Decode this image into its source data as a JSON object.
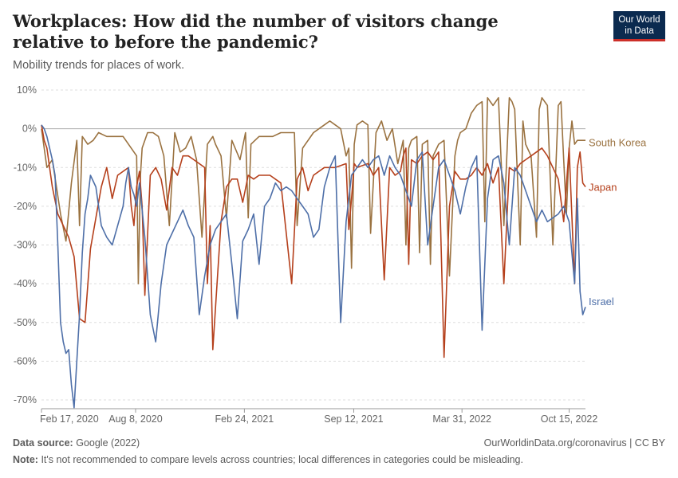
{
  "header": {
    "title": "Workplaces: How did the number of visitors change relative to before the pandemic?",
    "subtitle": "Mobility trends for places of work.",
    "logo_line1": "Our World",
    "logo_line2": "in Data"
  },
  "footer": {
    "source_label": "Data source:",
    "source_value": "Google (2022)",
    "note_label": "Note:",
    "note_value": "It's not recommended to compare levels across countries; local differences in categories could be misleading.",
    "link": "OurWorldinData.org/coronavirus | CC BY"
  },
  "colors": {
    "south_korea": "#9a7240",
    "japan": "#b5401c",
    "israel": "#4e6fa8",
    "grid": "#dddddd",
    "zero": "#aaaaaa"
  },
  "chart_data": {
    "type": "line",
    "title": "Workplaces: How did the number of visitors change relative to before the pandemic?",
    "ylabel": "",
    "xlabel": "",
    "ylim": [
      -72,
      10
    ],
    "yticks": [
      10,
      0,
      -10,
      -20,
      -30,
      -40,
      -50,
      -60,
      -70
    ],
    "ytick_labels": [
      "10%",
      "0%",
      "-10%",
      "-20%",
      "-30%",
      "-40%",
      "-50%",
      "-60%",
      "-70%"
    ],
    "xlim": [
      0,
      1000
    ],
    "xticks": [
      {
        "x": 0,
        "label": "Feb 17, 2020"
      },
      {
        "x": 173,
        "label": "Aug 8, 2020"
      },
      {
        "x": 373,
        "label": "Feb 24, 2021"
      },
      {
        "x": 574,
        "label": "Sep 12, 2021"
      },
      {
        "x": 773,
        "label": "Mar 31, 2022"
      },
      {
        "x": 970,
        "label": "Oct 15, 2022"
      }
    ],
    "series": [
      {
        "name": "South Korea",
        "color": "#9a7240",
        "x": [
          0,
          10,
          20,
          35,
          45,
          55,
          65,
          70,
          75,
          85,
          95,
          105,
          120,
          150,
          175,
          178,
          182,
          185,
          195,
          205,
          215,
          225,
          235,
          245,
          255,
          265,
          275,
          285,
          295,
          305,
          315,
          320,
          330,
          340,
          350,
          365,
          375,
          380,
          385,
          400,
          415,
          425,
          440,
          455,
          465,
          470,
          480,
          500,
          520,
          530,
          540,
          550,
          560,
          565,
          570,
          575,
          580,
          590,
          600,
          605,
          615,
          625,
          635,
          645,
          655,
          665,
          670,
          675,
          680,
          690,
          695,
          700,
          710,
          715,
          720,
          730,
          740,
          750,
          760,
          765,
          770,
          780,
          790,
          800,
          810,
          815,
          820,
          830,
          840,
          850,
          860,
          865,
          870,
          880,
          885,
          890,
          900,
          910,
          915,
          920,
          930,
          940,
          950,
          955,
          960,
          965,
          970,
          975,
          980,
          985,
          990,
          1000
        ],
        "y": [
          0,
          -10,
          -8,
          -22,
          -29,
          -14,
          -3,
          -25,
          -2,
          -4,
          -3,
          -1,
          -2,
          -2,
          -7,
          -40,
          -12,
          -5,
          -1,
          -1,
          -2,
          -7,
          -25,
          -1,
          -6,
          -5,
          -2,
          -8,
          -28,
          -4,
          -2,
          -4,
          -7,
          -23,
          -3,
          -8,
          -1,
          -23,
          -4,
          -2,
          -2,
          -2,
          -1,
          -1,
          -1,
          -25,
          -5,
          -1,
          1,
          2,
          1,
          0,
          -7,
          -5,
          -36,
          -4,
          1,
          2,
          1,
          -27,
          -1,
          2,
          -3,
          0,
          -9,
          -3,
          -30,
          -5,
          -3,
          -2,
          -32,
          -4,
          -3,
          -35,
          -7,
          -4,
          -3,
          -38,
          -7,
          -3,
          -1,
          0,
          4,
          6,
          7,
          -24,
          8,
          6,
          8,
          -25,
          8,
          7,
          5,
          -30,
          2,
          -4,
          -7,
          -28,
          5,
          8,
          6,
          -30,
          6,
          7,
          -8,
          -22,
          -5,
          2,
          -4,
          -3,
          -3,
          -3
        ]
      },
      {
        "name": "Japan",
        "color": "#b5401c",
        "x": [
          0,
          5,
          10,
          15,
          20,
          30,
          40,
          50,
          60,
          70,
          80,
          90,
          100,
          110,
          120,
          130,
          140,
          150,
          160,
          165,
          170,
          175,
          180,
          185,
          190,
          200,
          210,
          220,
          230,
          240,
          250,
          260,
          270,
          280,
          290,
          300,
          305,
          310,
          315,
          330,
          340,
          350,
          360,
          370,
          380,
          390,
          400,
          420,
          440,
          460,
          470,
          480,
          490,
          500,
          520,
          540,
          560,
          565,
          570,
          575,
          580,
          600,
          610,
          620,
          630,
          640,
          650,
          660,
          665,
          670,
          675,
          680,
          690,
          700,
          710,
          720,
          730,
          740,
          750,
          760,
          770,
          780,
          790,
          800,
          810,
          820,
          830,
          840,
          850,
          860,
          870,
          880,
          890,
          900,
          910,
          920,
          930,
          940,
          950,
          960,
          970,
          980,
          985,
          990,
          995,
          1000
        ],
        "y": [
          1,
          -3,
          -5,
          -10,
          -15,
          -22,
          -25,
          -28,
          -33,
          -49,
          -50,
          -31,
          -23,
          -15,
          -10,
          -18,
          -12,
          -11,
          -10,
          -20,
          -25,
          -15,
          -11,
          -20,
          -43,
          -12,
          -10,
          -13,
          -21,
          -10,
          -12,
          -7,
          -7,
          -8,
          -9,
          -10,
          -40,
          -25,
          -57,
          -24,
          -15,
          -13,
          -13,
          -19,
          -12,
          -13,
          -12,
          -12,
          -14,
          -40,
          -13,
          -10,
          -16,
          -12,
          -10,
          -10,
          -9,
          -26,
          -18,
          -9,
          -10,
          -9,
          -12,
          -10,
          -39,
          -10,
          -12,
          -11,
          -7,
          -5,
          -35,
          -8,
          -9,
          -7,
          -6,
          -8,
          -6,
          -59,
          -20,
          -11,
          -13,
          -13,
          -12,
          -10,
          -12,
          -9,
          -14,
          -10,
          -40,
          -10,
          -11,
          -9,
          -8,
          -7,
          -6,
          -5,
          -7,
          -10,
          -13,
          -24,
          -5,
          -40,
          -10,
          -6,
          -14,
          -15
        ]
      },
      {
        "name": "Israel",
        "color": "#4e6fa8",
        "x": [
          0,
          5,
          10,
          15,
          20,
          25,
          30,
          35,
          40,
          45,
          50,
          55,
          60,
          65,
          70,
          75,
          80,
          85,
          90,
          100,
          110,
          120,
          130,
          140,
          150,
          155,
          160,
          165,
          170,
          175,
          180,
          190,
          200,
          210,
          220,
          230,
          240,
          250,
          260,
          270,
          280,
          290,
          300,
          310,
          320,
          330,
          340,
          350,
          360,
          370,
          380,
          390,
          400,
          410,
          420,
          430,
          440,
          450,
          460,
          470,
          480,
          490,
          500,
          510,
          520,
          530,
          540,
          550,
          560,
          570,
          580,
          590,
          600,
          610,
          620,
          630,
          640,
          650,
          660,
          670,
          680,
          690,
          700,
          710,
          720,
          730,
          740,
          750,
          760,
          770,
          780,
          790,
          800,
          810,
          820,
          830,
          840,
          850,
          860,
          870,
          880,
          890,
          900,
          910,
          920,
          930,
          940,
          950,
          960,
          970,
          980,
          985,
          990,
          995,
          1000
        ],
        "y": [
          1,
          0,
          -2,
          -5,
          -8,
          -12,
          -30,
          -50,
          -55,
          -58,
          -57,
          -66,
          -72,
          -60,
          -48,
          -32,
          -22,
          -18,
          -12,
          -15,
          -25,
          -28,
          -30,
          -25,
          -20,
          -14,
          -10,
          -15,
          -17,
          -20,
          -14,
          -28,
          -48,
          -55,
          -40,
          -30,
          -27,
          -24,
          -21,
          -25,
          -28,
          -48,
          -38,
          -30,
          -26,
          -24,
          -22,
          -35,
          -49,
          -29,
          -26,
          -22,
          -35,
          -20,
          -18,
          -14,
          -16,
          -15,
          -16,
          -18,
          -20,
          -22,
          -28,
          -26,
          -15,
          -10,
          -7,
          -50,
          -24,
          -12,
          -10,
          -8,
          -10,
          -8,
          -7,
          -12,
          -7,
          -10,
          -12,
          -16,
          -20,
          -8,
          -6,
          -30,
          -20,
          -10,
          -8,
          -12,
          -16,
          -22,
          -15,
          -10,
          -7,
          -52,
          -18,
          -8,
          -7,
          -14,
          -30,
          -10,
          -12,
          -16,
          -20,
          -24,
          -21,
          -24,
          -23,
          -22,
          -20,
          -24,
          -40,
          -18,
          -42,
          -48,
          -46
        ]
      }
    ],
    "end_labels": [
      "South Korea",
      "Japan",
      "Israel"
    ]
  }
}
